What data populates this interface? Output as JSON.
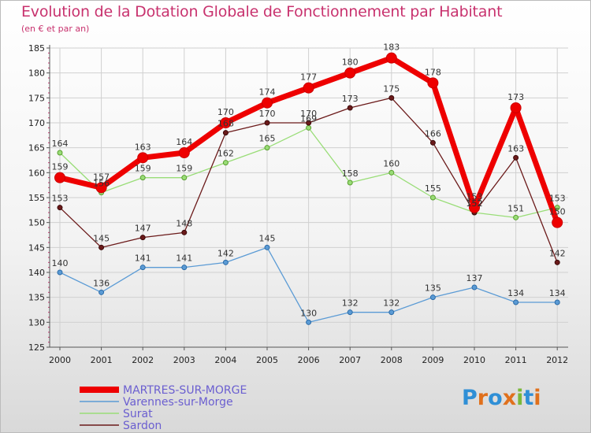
{
  "chart_data": {
    "type": "line",
    "title": "Evolution de la Dotation Globale de Fonctionnement par Habitant",
    "subtitle": "(en € et par an)",
    "xlabel": "",
    "ylabel": "",
    "ylim": [
      125,
      185
    ],
    "yticks": [
      125,
      130,
      135,
      140,
      145,
      150,
      155,
      160,
      165,
      170,
      175,
      180,
      185
    ],
    "categories": [
      "2000",
      "2001",
      "2002",
      "2003",
      "2004",
      "2005",
      "2006",
      "2007",
      "2008",
      "2009",
      "2010",
      "2011",
      "2012"
    ],
    "series": [
      {
        "name": "MARTRES-SUR-MORGE",
        "color": "#ee0000",
        "values": [
          159,
          157,
          163,
          164,
          170,
          174,
          177,
          180,
          183,
          178,
          153,
          173,
          150
        ]
      },
      {
        "name": "Varennes-sur-Morge",
        "color": "#5b9bd5",
        "values": [
          140,
          136,
          141,
          141,
          142,
          145,
          130,
          132,
          132,
          135,
          137,
          134,
          134
        ]
      },
      {
        "name": "Surat",
        "color": "#99dd77",
        "values": [
          164,
          156,
          159,
          159,
          162,
          165,
          169,
          158,
          160,
          155,
          152,
          151,
          153
        ]
      },
      {
        "name": "Sardon",
        "color": "#6b1a1a",
        "values": [
          153,
          145,
          147,
          148,
          168,
          170,
          170,
          173,
          175,
          166,
          152,
          163,
          142
        ]
      }
    ]
  },
  "logo": {
    "letters": [
      "P",
      "r",
      "o",
      "x",
      "i",
      "t",
      "i"
    ],
    "colors": [
      "#2f8fd6",
      "#e0701c",
      "#2f8fd6",
      "#e0701c",
      "#7ab83a",
      "#2f8fd6",
      "#e0701c"
    ]
  }
}
